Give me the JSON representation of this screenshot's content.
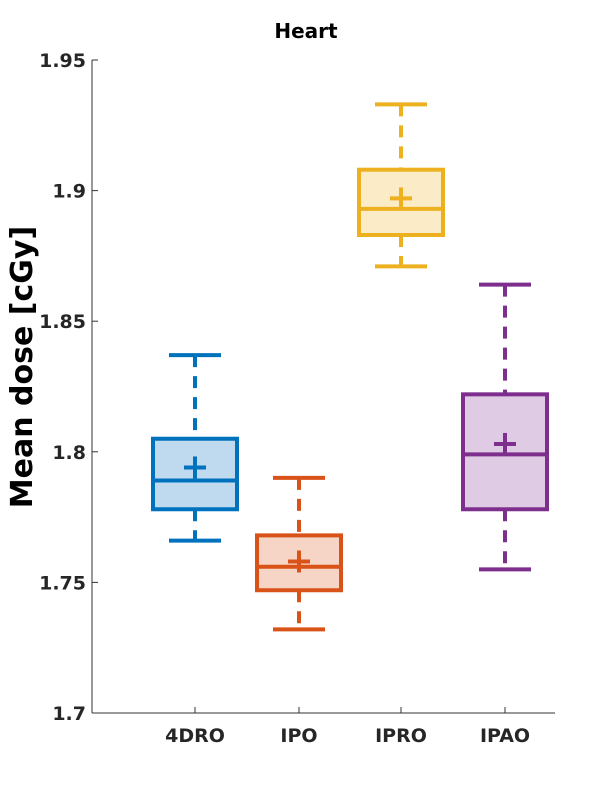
{
  "chart_data": {
    "type": "box",
    "title": "Heart",
    "xlabel": "",
    "ylabel": "Mean dose [cGy]",
    "ylim": [
      1.7,
      1.95
    ],
    "yticks": [
      1.7,
      1.75,
      1.8,
      1.85,
      1.9,
      1.95
    ],
    "ytick_labels": [
      "1.7",
      "1.75",
      "1.8",
      "1.85",
      "1.9",
      "1.95"
    ],
    "categories": [
      "4DRO",
      "IPO",
      "IPRO",
      "IPAO"
    ],
    "boxes": [
      {
        "name": "4DRO",
        "color": "#0072BD",
        "fill": "#BFD9EE",
        "whisker_low": 1.766,
        "q1": 1.778,
        "median": 1.789,
        "q3": 1.805,
        "whisker_high": 1.837,
        "mean": 1.794
      },
      {
        "name": "IPO",
        "color": "#D95319",
        "fill": "#F6D4C6",
        "whisker_low": 1.732,
        "q1": 1.747,
        "median": 1.756,
        "q3": 1.768,
        "whisker_high": 1.79,
        "mean": 1.758
      },
      {
        "name": "IPRO",
        "color": "#EDB120",
        "fill": "#FBEBC7",
        "whisker_low": 1.871,
        "q1": 1.883,
        "median": 1.893,
        "q3": 1.908,
        "whisker_high": 1.933,
        "mean": 1.897
      },
      {
        "name": "IPAO",
        "color": "#7E2F8E",
        "fill": "#DFCBE3",
        "whisker_low": 1.755,
        "q1": 1.778,
        "median": 1.799,
        "q3": 1.822,
        "whisker_high": 1.864,
        "mean": 1.803
      }
    ]
  }
}
